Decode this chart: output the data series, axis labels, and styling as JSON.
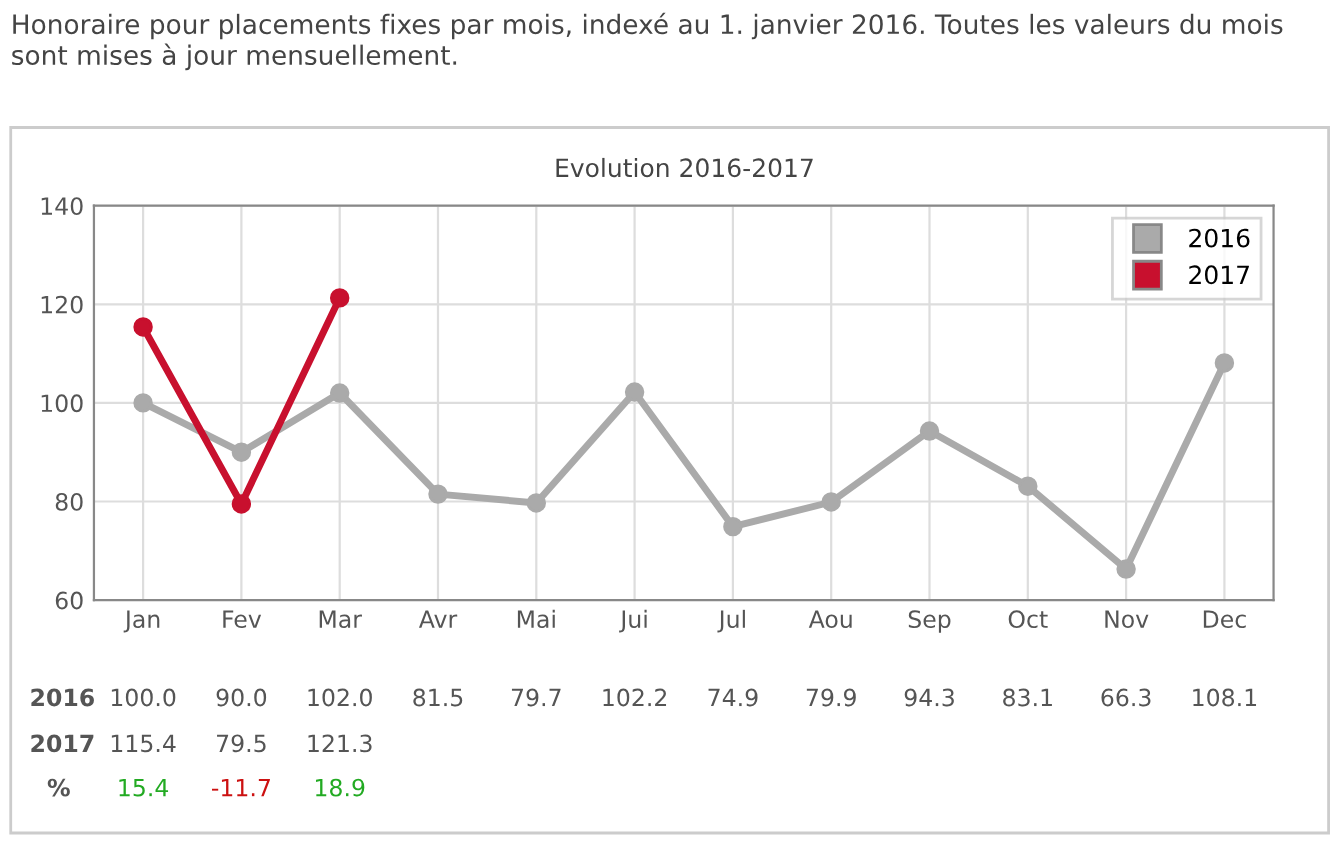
{
  "chart_data": {
    "type": "line",
    "subtitle": "Honoraire pour placements fixes par mois, indexé au 1. janvier 2016. Toutes les valeurs du mois sont mises à jour mensuellement.",
    "title": "Evolution 2016-2017",
    "categories": [
      "Jan",
      "Fev",
      "Mar",
      "Avr",
      "Mai",
      "Jui",
      "Jul",
      "Aou",
      "Sep",
      "Oct",
      "Nov",
      "Dec"
    ],
    "series": [
      {
        "name": "2016",
        "color": "#aaaaaa",
        "values": [
          100.0,
          90.0,
          102.0,
          81.5,
          79.7,
          102.2,
          74.9,
          79.9,
          94.3,
          83.1,
          66.3,
          108.1
        ],
        "value_labels": [
          "100.0",
          "90.0",
          "102.0",
          "81.5",
          "79.7",
          "102.2",
          "74.9",
          "79.9",
          "94.3",
          "83.1",
          "66.3",
          "108.1"
        ]
      },
      {
        "name": "2017",
        "color": "#c8102e",
        "values": [
          115.4,
          79.5,
          121.3,
          null,
          null,
          null,
          null,
          null,
          null,
          null,
          null,
          null
        ],
        "value_labels": [
          "115.4",
          "79.5",
          "121.3",
          null,
          null,
          null,
          null,
          null,
          null,
          null,
          null,
          null
        ]
      }
    ],
    "annotations": [
      "%",
      "15.4",
      "-11.7",
      "18.9"
    ],
    "ylim": [
      60,
      140
    ],
    "yticks": [
      60,
      80,
      100,
      120,
      140
    ],
    "grid": true,
    "legend": "top right",
    "marker": "circle",
    "line_style": "solid"
  }
}
